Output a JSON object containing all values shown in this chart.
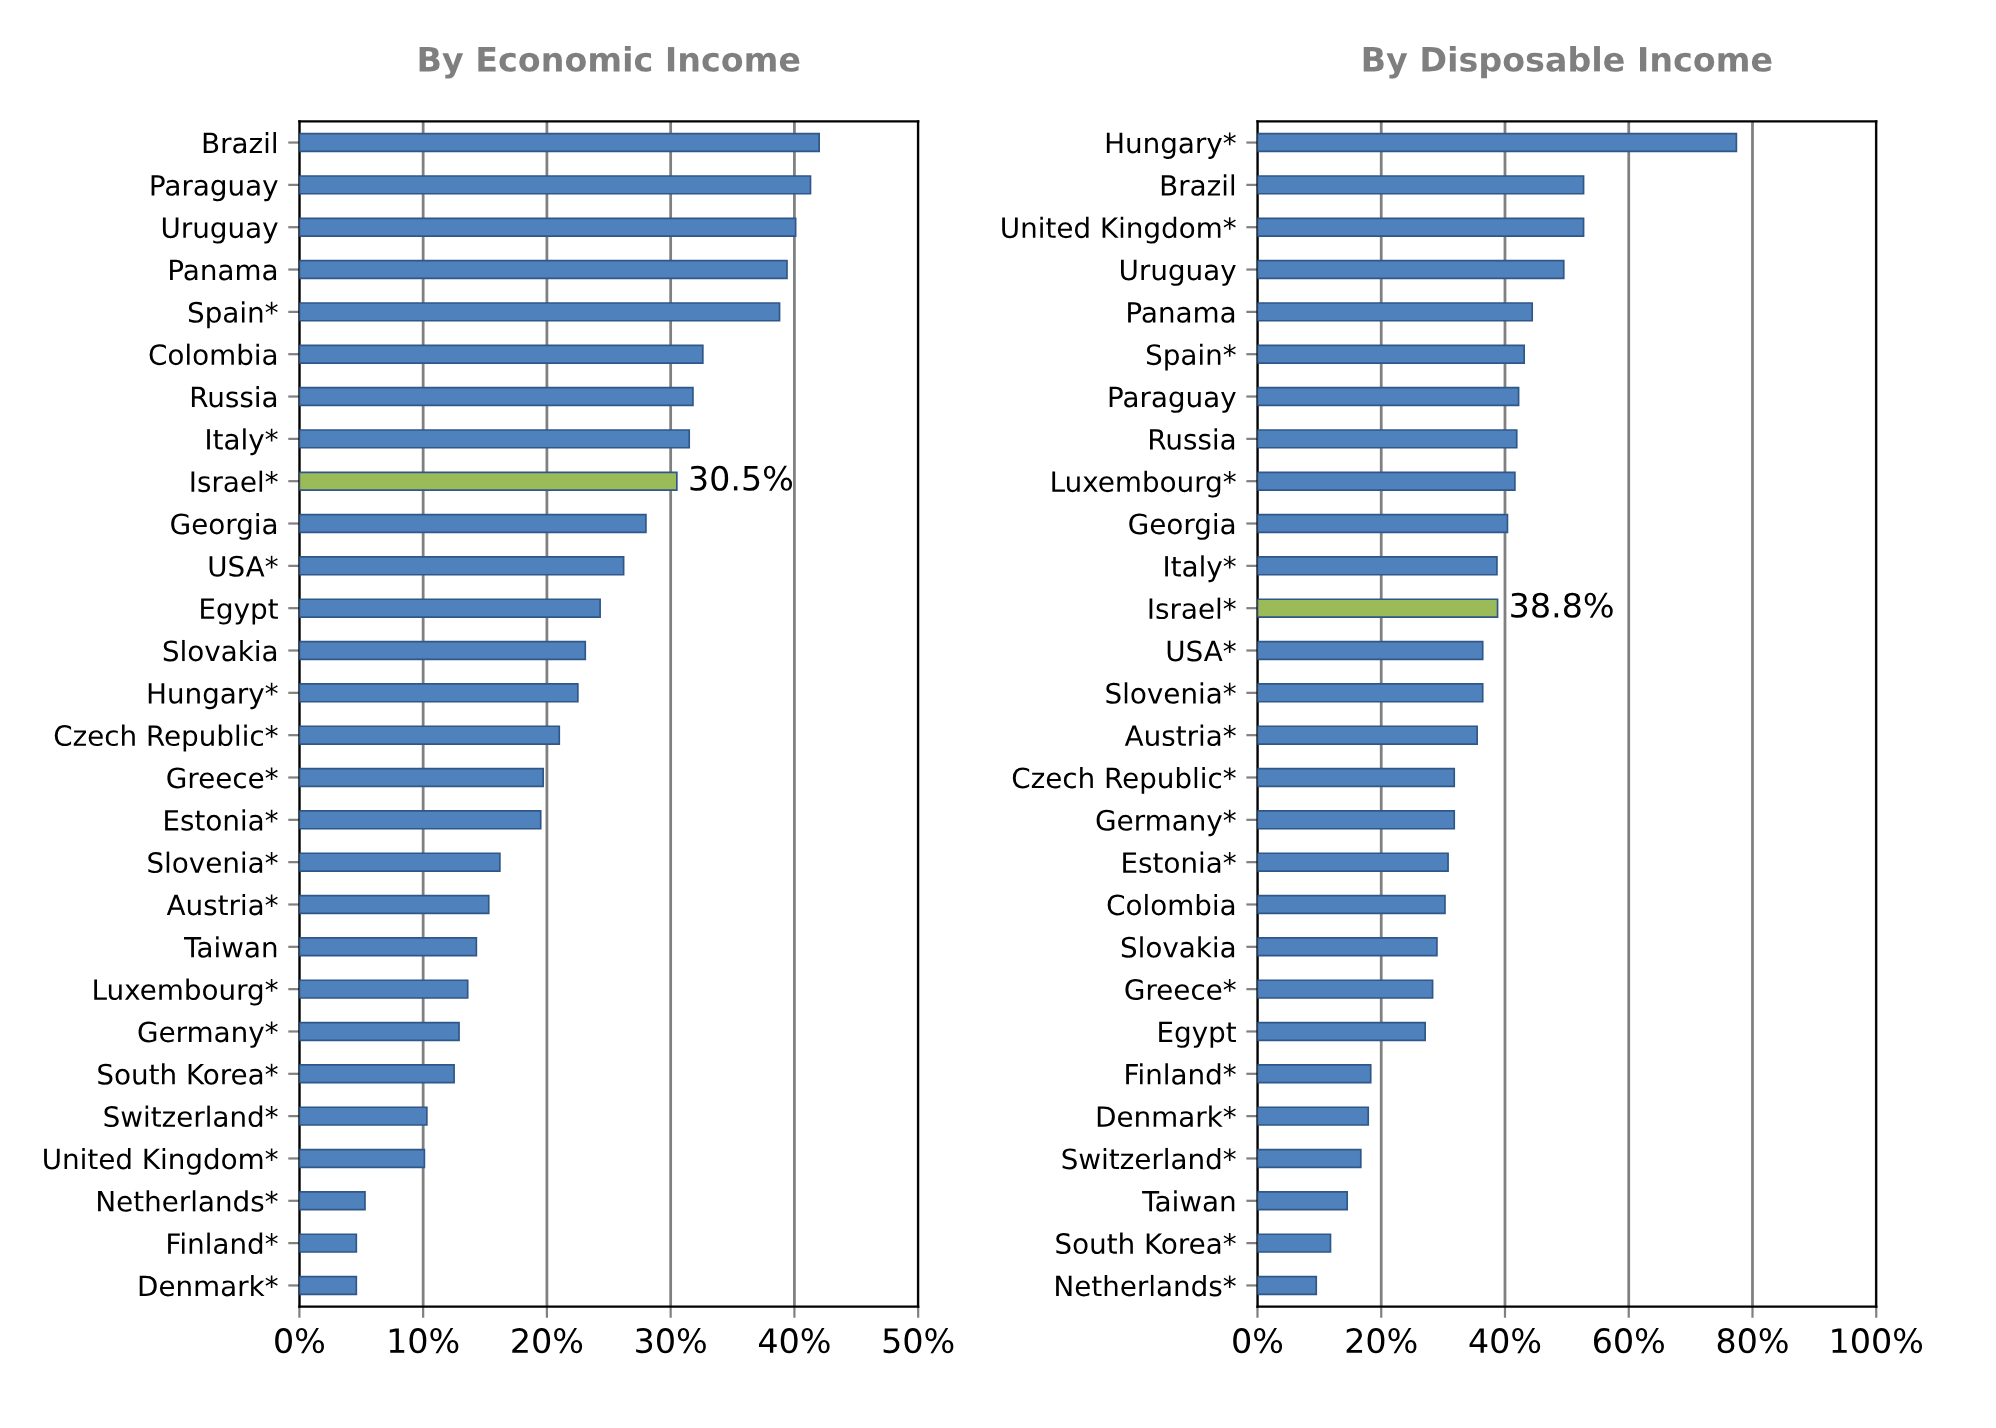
{
  "chart_data": [
    {
      "type": "bar",
      "orientation": "horizontal",
      "title": "By Economic Income",
      "categories": [
        "Brazil",
        "Paraguay",
        "Uruguay",
        "Panama",
        "Spain*",
        "Colombia",
        "Russia",
        "Italy*",
        "Israel*",
        "Georgia",
        "USA*",
        "Egypt",
        "Slovakia",
        "Hungary*",
        "Czech Republic*",
        "Greece*",
        "Estonia*",
        "Slovenia*",
        "Austria*",
        "Taiwan",
        "Luxembourg*",
        "Germany*",
        "South Korea*",
        "Switzerland*",
        "United Kingdom*",
        "Netherlands*",
        "Finland*",
        "Denmark*"
      ],
      "values": [
        42.0,
        41.3,
        40.1,
        39.4,
        38.8,
        32.6,
        31.8,
        31.5,
        30.5,
        28.0,
        26.2,
        24.3,
        23.1,
        22.5,
        21.0,
        19.7,
        19.5,
        16.2,
        15.3,
        14.3,
        13.6,
        12.9,
        12.5,
        10.3,
        10.1,
        5.3,
        4.6,
        4.6
      ],
      "colors": [
        "#4f81bd",
        "#4f81bd",
        "#4f81bd",
        "#4f81bd",
        "#4f81bd",
        "#4f81bd",
        "#4f81bd",
        "#4f81bd",
        "#9bbb59",
        "#4f81bd",
        "#4f81bd",
        "#4f81bd",
        "#4f81bd",
        "#4f81bd",
        "#4f81bd",
        "#4f81bd",
        "#4f81bd",
        "#4f81bd",
        "#4f81bd",
        "#4f81bd",
        "#4f81bd",
        "#4f81bd",
        "#4f81bd",
        "#4f81bd",
        "#4f81bd",
        "#4f81bd",
        "#4f81bd",
        "#4f81bd"
      ],
      "value_labels": [
        null,
        null,
        null,
        null,
        null,
        null,
        null,
        null,
        "30.5%",
        null,
        null,
        null,
        null,
        null,
        null,
        null,
        null,
        null,
        null,
        null,
        null,
        null,
        null,
        null,
        null,
        null,
        null,
        null
      ],
      "xlim": [
        0,
        50
      ],
      "xticks": [
        {
          "value": 0,
          "label": "0%"
        },
        {
          "value": 10,
          "label": "10%"
        },
        {
          "value": 20,
          "label": "20%"
        },
        {
          "value": 30,
          "label": "30%"
        },
        {
          "value": 40,
          "label": "40%"
        },
        {
          "value": 50,
          "label": "50%"
        }
      ],
      "grid": "x"
    },
    {
      "type": "bar",
      "orientation": "horizontal",
      "title": "By Disposable Income",
      "categories": [
        "Hungary*",
        "Brazil",
        "United Kingdom*",
        "Uruguay",
        "Panama",
        "Spain*",
        "Paraguay",
        "Russia",
        "Luxembourg*",
        "Georgia",
        "Italy*",
        "Israel*",
        "USA*",
        "Slovenia*",
        "Austria*",
        "Czech Republic*",
        "Germany*",
        "Estonia*",
        "Colombia",
        "Slovakia",
        "Greece*",
        "Egypt",
        "Finland*",
        "Denmark*",
        "Switzerland*",
        "Taiwan",
        "South Korea*",
        "Netherlands*"
      ],
      "values": [
        77.4,
        52.7,
        52.7,
        49.5,
        44.4,
        43.1,
        42.2,
        41.9,
        41.6,
        40.4,
        38.7,
        38.8,
        36.4,
        36.4,
        35.5,
        31.8,
        31.8,
        30.8,
        30.3,
        29.0,
        28.3,
        27.1,
        18.3,
        17.9,
        16.7,
        14.5,
        11.8,
        9.5
      ],
      "colors": [
        "#4f81bd",
        "#4f81bd",
        "#4f81bd",
        "#4f81bd",
        "#4f81bd",
        "#4f81bd",
        "#4f81bd",
        "#4f81bd",
        "#4f81bd",
        "#4f81bd",
        "#4f81bd",
        "#9bbb59",
        "#4f81bd",
        "#4f81bd",
        "#4f81bd",
        "#4f81bd",
        "#4f81bd",
        "#4f81bd",
        "#4f81bd",
        "#4f81bd",
        "#4f81bd",
        "#4f81bd",
        "#4f81bd",
        "#4f81bd",
        "#4f81bd",
        "#4f81bd",
        "#4f81bd",
        "#4f81bd"
      ],
      "value_labels": [
        null,
        null,
        null,
        null,
        null,
        null,
        null,
        null,
        null,
        null,
        null,
        "38.8%",
        null,
        null,
        null,
        null,
        null,
        null,
        null,
        null,
        null,
        null,
        null,
        null,
        null,
        null,
        null,
        null
      ],
      "xlim": [
        0,
        100
      ],
      "xticks": [
        {
          "value": 0,
          "label": "0%"
        },
        {
          "value": 20,
          "label": "20%"
        },
        {
          "value": 40,
          "label": "40%"
        },
        {
          "value": 60,
          "label": "60%"
        },
        {
          "value": 80,
          "label": "80%"
        },
        {
          "value": 100,
          "label": "100%"
        }
      ],
      "grid": "x"
    }
  ]
}
